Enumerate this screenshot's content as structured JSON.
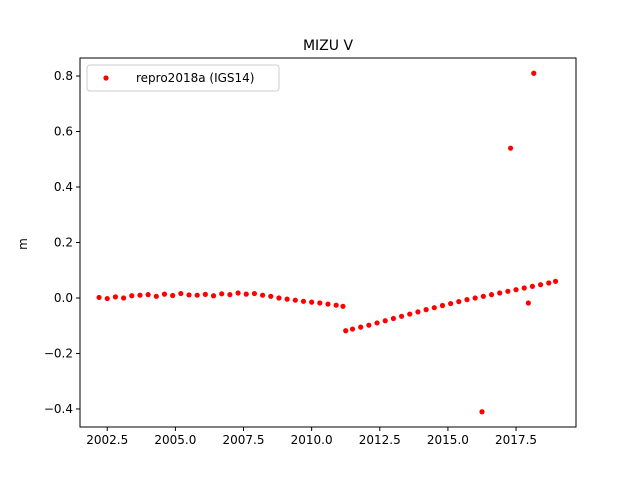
{
  "chart_data": {
    "type": "scatter",
    "title": "MIZU V",
    "xlabel": "",
    "ylabel": "m",
    "xlim": [
      2001.5,
      2019.7
    ],
    "ylim": [
      -0.465,
      0.865
    ],
    "xticks": [
      2002.5,
      2005.0,
      2007.5,
      2010.0,
      2012.5,
      2015.0,
      2017.5
    ],
    "xtick_labels": [
      "2002.5",
      "2005.0",
      "2007.5",
      "2010.0",
      "2012.5",
      "2015.0",
      "2017.5"
    ],
    "yticks": [
      -0.4,
      -0.2,
      0.0,
      0.2,
      0.4,
      0.6,
      0.8
    ],
    "ytick_labels": [
      "−0.4",
      "−0.2",
      "0.0",
      "0.2",
      "0.4",
      "0.6",
      "0.8"
    ],
    "grid": false,
    "legend_position": "upper left",
    "series": [
      {
        "name": "repro2018a (IGS14)",
        "color": "#ff0000",
        "marker": "dot",
        "x": [
          2002.2,
          2002.5,
          2002.8,
          2003.1,
          2003.4,
          2003.7,
          2004.0,
          2004.3,
          2004.6,
          2004.9,
          2005.2,
          2005.5,
          2005.8,
          2006.1,
          2006.4,
          2006.7,
          2007.0,
          2007.3,
          2007.6,
          2007.9,
          2008.2,
          2008.5,
          2008.8,
          2009.1,
          2009.4,
          2009.7,
          2010.0,
          2010.3,
          2010.6,
          2010.9,
          2011.15,
          2011.25,
          2011.5,
          2011.8,
          2012.1,
          2012.4,
          2012.7,
          2013.0,
          2013.3,
          2013.6,
          2013.9,
          2014.2,
          2014.5,
          2014.8,
          2015.1,
          2015.4,
          2015.7,
          2016.0,
          2016.3,
          2016.6,
          2016.9,
          2017.2,
          2017.5,
          2017.8,
          2018.1,
          2018.4,
          2018.7,
          2018.95,
          2017.3,
          2018.15,
          2016.25,
          2017.95
        ],
        "y": [
          0.002,
          -0.002,
          0.004,
          0.0,
          0.008,
          0.01,
          0.012,
          0.006,
          0.014,
          0.009,
          0.016,
          0.011,
          0.01,
          0.013,
          0.008,
          0.015,
          0.012,
          0.018,
          0.014,
          0.016,
          0.01,
          0.006,
          0.0,
          -0.004,
          -0.008,
          -0.012,
          -0.015,
          -0.018,
          -0.022,
          -0.026,
          -0.03,
          -0.118,
          -0.112,
          -0.105,
          -0.098,
          -0.09,
          -0.082,
          -0.074,
          -0.066,
          -0.058,
          -0.05,
          -0.042,
          -0.035,
          -0.027,
          -0.02,
          -0.013,
          -0.006,
          0.0,
          0.006,
          0.012,
          0.018,
          0.024,
          0.03,
          0.036,
          0.042,
          0.048,
          0.054,
          0.06,
          0.54,
          0.81,
          -0.41,
          -0.018
        ]
      }
    ]
  }
}
